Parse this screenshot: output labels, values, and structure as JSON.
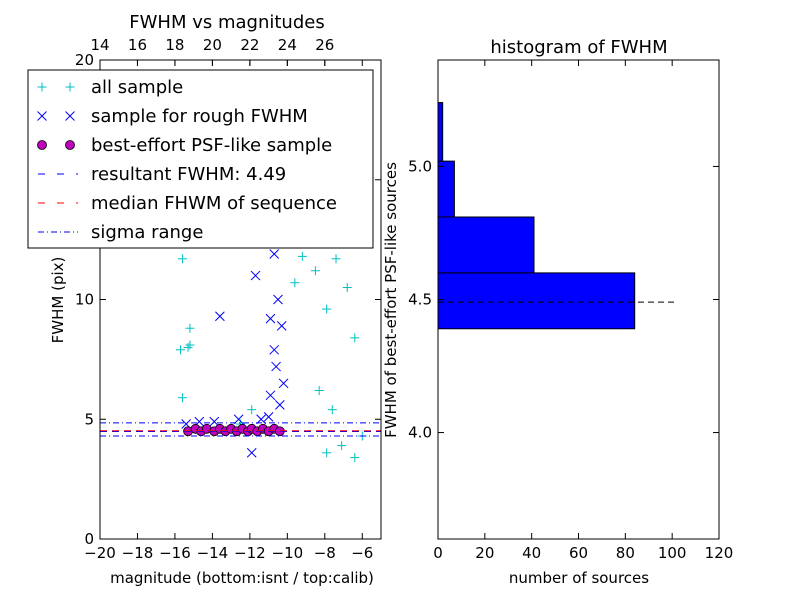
{
  "chart_data": [
    {
      "type": "scatter",
      "title": "FWHM vs magnitudes",
      "xlabel": "magnitude (bottom:isnt / top:calib)",
      "ylabel": "FWHM (pix)",
      "xlim": [
        -20,
        -5
      ],
      "ylim": [
        0,
        20
      ],
      "xticks": [
        -20,
        -18,
        -16,
        -14,
        -12,
        -10,
        -8,
        -6
      ],
      "xtick_labels": [
        "−20",
        "−18",
        "−16",
        "−14",
        "−12",
        "−10",
        "−8",
        "−6"
      ],
      "yticks": [
        0,
        5,
        10,
        15,
        20
      ],
      "ytick_labels": [
        "0",
        "5",
        "10",
        "15",
        "20"
      ],
      "top_axis": {
        "label": "calib",
        "ticks": [
          14,
          16,
          18,
          20,
          22,
          24,
          26
        ],
        "tick_labels": [
          "14",
          "16",
          "18",
          "20",
          "22",
          "24",
          "26"
        ],
        "offset": 34
      },
      "legend": {
        "placement": "upper-left",
        "entries": [
          {
            "label": "all sample",
            "marker": "plus",
            "color": "#00bfbf"
          },
          {
            "label": "sample for rough FWHM",
            "marker": "x",
            "color": "#0000ff"
          },
          {
            "label": "best-effort PSF-like sample",
            "marker": "circle",
            "color": "#bf00bf"
          },
          {
            "label": "resultant FWHM: 4.49",
            "marker": "dashed",
            "color": "#0000ff"
          },
          {
            "label": "median FHWM of sequence",
            "marker": "dashed",
            "color": "#ff0000"
          },
          {
            "label": "sigma range",
            "marker": "dashdot",
            "color": "#0000ff"
          }
        ]
      },
      "series": [
        {
          "name": "all sample",
          "color": "#00bfbf",
          "marker": "plus",
          "points": [
            [
              -15.7,
              7.9
            ],
            [
              -15.3,
              8.0
            ],
            [
              -15.2,
              8.1
            ],
            [
              -15.2,
              8.8
            ],
            [
              -15.6,
              11.7
            ],
            [
              -15.6,
              5.9
            ],
            [
              -11.9,
              5.4
            ],
            [
              -12.5,
              4.8
            ],
            [
              -8.5,
              11.2
            ],
            [
              -7.4,
              11.7
            ],
            [
              -6.8,
              10.5
            ],
            [
              -6.4,
              8.4
            ],
            [
              -9.6,
              10.7
            ],
            [
              -9.2,
              11.8
            ],
            [
              -7.9,
              9.6
            ],
            [
              -8.3,
              6.2
            ],
            [
              -7.6,
              5.4
            ],
            [
              -6.0,
              4.3
            ],
            [
              -7.1,
              3.9
            ],
            [
              -7.9,
              3.6
            ],
            [
              -6.4,
              3.4
            ]
          ]
        },
        {
          "name": "sample for rough FWHM",
          "color": "#0000ff",
          "marker": "x",
          "points": [
            [
              -13.6,
              9.3
            ],
            [
              -11.7,
              11.0
            ],
            [
              -11.9,
              3.6
            ],
            [
              -10.7,
              11.9
            ],
            [
              -10.5,
              10.0
            ],
            [
              -10.9,
              9.2
            ],
            [
              -10.3,
              8.9
            ],
            [
              -10.7,
              7.9
            ],
            [
              -10.6,
              7.2
            ],
            [
              -10.2,
              6.5
            ],
            [
              -10.9,
              6.0
            ],
            [
              -10.4,
              5.6
            ],
            [
              -11.0,
              5.1
            ],
            [
              -14.7,
              4.9
            ],
            [
              -15.4,
              4.8
            ],
            [
              -13.9,
              4.9
            ],
            [
              -12.6,
              5.0
            ],
            [
              -11.4,
              5.0
            ]
          ]
        },
        {
          "name": "best-effort PSF-like sample",
          "color": "#bf00bf",
          "marker": "circle",
          "points": [
            [
              -15.3,
              4.5
            ],
            [
              -14.9,
              4.6
            ],
            [
              -14.6,
              4.5
            ],
            [
              -14.3,
              4.6
            ],
            [
              -13.9,
              4.5
            ],
            [
              -13.6,
              4.6
            ],
            [
              -13.3,
              4.5
            ],
            [
              -13.0,
              4.6
            ],
            [
              -12.7,
              4.5
            ],
            [
              -12.4,
              4.6
            ],
            [
              -12.1,
              4.5
            ],
            [
              -11.9,
              4.6
            ],
            [
              -11.6,
              4.5
            ],
            [
              -11.3,
              4.6
            ],
            [
              -11.0,
              4.5
            ],
            [
              -10.7,
              4.6
            ],
            [
              -10.4,
              4.5
            ]
          ]
        }
      ],
      "reference_lines": [
        {
          "name": "resultant FWHM: 4.49",
          "y": 4.49,
          "color": "#0000ff",
          "style": "dashed"
        },
        {
          "name": "median FHWM of sequence",
          "y": 4.52,
          "color": "#ff0000",
          "style": "dashed"
        },
        {
          "name": "sigma range",
          "y": 4.3,
          "color": "#0000ff",
          "style": "dashdot"
        },
        {
          "name": "sigma range",
          "y": 4.85,
          "color": "#0000ff",
          "style": "dashdot"
        }
      ]
    },
    {
      "type": "bar",
      "orientation": "horizontal",
      "title": "histogram of FWHM",
      "xlabel": "number of sources",
      "ylabel": "FWHM of best-effort PSF-like sources",
      "xlim": [
        0,
        120
      ],
      "ylim": [
        3.6,
        5.4
      ],
      "xticks": [
        0,
        20,
        40,
        60,
        80,
        100,
        120
      ],
      "yticks": [
        4.0,
        4.5,
        5.0
      ],
      "ytick_labels": [
        "4.0",
        "4.5",
        "5.0"
      ],
      "bar_color": "#0000ff",
      "bins": [
        {
          "from": 4.39,
          "to": 4.6,
          "count": 84
        },
        {
          "from": 4.6,
          "to": 4.81,
          "count": 41
        },
        {
          "from": 4.81,
          "to": 5.02,
          "count": 7
        },
        {
          "from": 5.02,
          "to": 5.24,
          "count": 2
        }
      ],
      "reference_line": {
        "y": 4.49,
        "x_to": 102,
        "style": "dashed",
        "color": "#000000"
      }
    }
  ]
}
